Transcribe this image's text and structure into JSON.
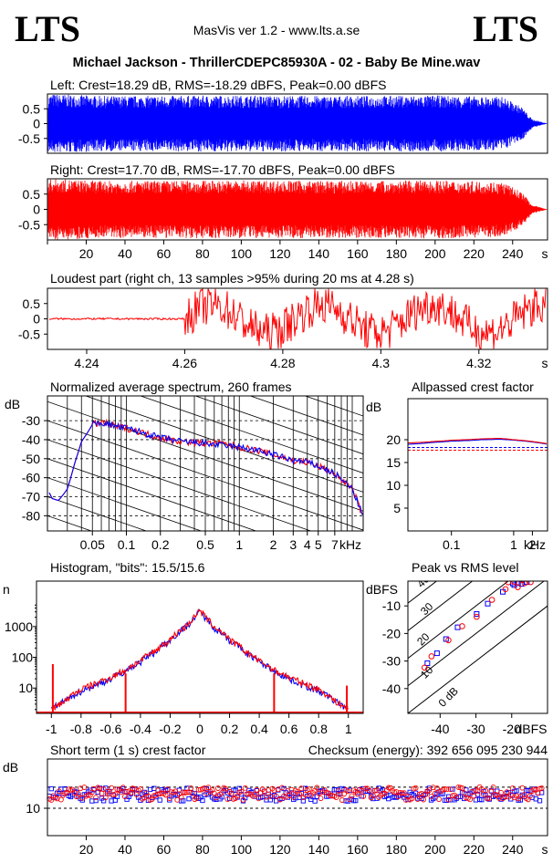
{
  "header": {
    "logo_left": "LTS",
    "logo_right": "LTS",
    "app_title": "MasVis ver 1.2 - www.lts.a.se",
    "track_title": "Michael Jackson - ThrillerCDEPC85930A - 02 - Baby Be Mine.wav"
  },
  "colors": {
    "left_channel": "#0000ff",
    "right_channel": "#ff0000",
    "axis": "#000000"
  },
  "chart_data": [
    {
      "type": "area",
      "title": "Left: Crest=18.29 dB, RMS=-18.29 dBFS, Peak=0.00 dBFS",
      "yticks": [
        "0.5",
        "0",
        "-0.5"
      ],
      "ylim": [
        -1,
        1
      ],
      "xlim": [
        0,
        258
      ],
      "series": [
        {
          "name": "Left",
          "color": "#0000ff",
          "envelope": {
            "t": [
              0,
              2,
              30,
              100,
              150,
              200,
              235,
              245,
              250,
              258
            ],
            "amp": [
              0.95,
              1.0,
              0.93,
              0.95,
              0.93,
              0.95,
              0.9,
              0.55,
              0.15,
              0
            ]
          }
        }
      ]
    },
    {
      "type": "area",
      "title": "Right: Crest=17.70 dB, RMS=-17.70 dBFS, Peak=0.00 dBFS",
      "yticks": [
        "0.5",
        "0",
        "-0.5"
      ],
      "ylim": [
        -1,
        1
      ],
      "xticks": [
        "20",
        "40",
        "60",
        "80",
        "100",
        "120",
        "140",
        "160",
        "180",
        "200",
        "220",
        "240"
      ],
      "xunit": "s",
      "xlim": [
        0,
        258
      ],
      "series": [
        {
          "name": "Right",
          "color": "#ff0000",
          "envelope": {
            "t": [
              0,
              2,
              30,
              100,
              150,
              200,
              235,
              245,
              250,
              258
            ],
            "amp": [
              0.95,
              1.0,
              0.93,
              0.95,
              0.93,
              0.95,
              0.9,
              0.55,
              0.15,
              0
            ]
          }
        }
      ]
    },
    {
      "type": "line",
      "title": "Loudest part (right ch, 13 samples >95% during 20 ms at 4.28 s)",
      "yticks": [
        "0.5",
        "0",
        "-0.5"
      ],
      "ylim": [
        -1,
        1
      ],
      "xticks": [
        "4.24",
        "4.26",
        "4.28",
        "4.3",
        "4.32"
      ],
      "xunit": "s",
      "xlim": [
        4.232,
        4.334
      ],
      "series": [
        {
          "name": "Right",
          "color": "#ff0000"
        }
      ]
    },
    {
      "type": "line",
      "title": "Normalized average spectrum, 260 frames",
      "ylabel": "dB",
      "yticks": [
        "-30",
        "-40",
        "-50",
        "-60",
        "-70",
        "-80"
      ],
      "ylim": [
        -88,
        -17
      ],
      "xticks": [
        "0.05",
        "0.1",
        "0.2",
        "0.5",
        "1",
        "2",
        "3",
        "4",
        "5",
        "7"
      ],
      "xunit": "kHz",
      "xlim": [
        0.02,
        12.5
      ],
      "x": [
        0.02,
        0.022,
        0.025,
        0.03,
        0.035,
        0.04,
        0.05,
        0.06,
        0.08,
        0.1,
        0.15,
        0.2,
        0.3,
        0.5,
        0.7,
        1,
        1.5,
        2,
        3,
        4,
        5,
        6,
        7,
        8,
        10,
        12
      ],
      "series": [
        {
          "name": "Left",
          "color": "#0000ff",
          "values": [
            -66,
            -71,
            -72,
            -66,
            -52,
            -41,
            -32,
            -31,
            -33,
            -34,
            -37,
            -39,
            -41,
            -42,
            -43,
            -44,
            -46,
            -48,
            -51,
            -52,
            -54,
            -56,
            -58,
            -61,
            -66,
            -78
          ]
        },
        {
          "name": "Right",
          "color": "#ff0000",
          "values": [
            -66,
            -71,
            -72,
            -66,
            -52,
            -41,
            -32,
            -31,
            -33,
            -34,
            -37,
            -39,
            -41,
            -42,
            -42,
            -44,
            -46,
            -48,
            -51,
            -52,
            -54,
            -56,
            -58,
            -61,
            -66,
            -78
          ]
        }
      ]
    },
    {
      "type": "line",
      "title": "Allpassed crest factor",
      "ylabel": "dB",
      "yticks": [
        "20",
        "15",
        "10",
        "5"
      ],
      "ylim": [
        0,
        29
      ],
      "xticks": [
        "0.1",
        "1",
        "2"
      ],
      "xunit": "kHz",
      "xlim": [
        0.02,
        3.5
      ],
      "x": [
        0.02,
        0.05,
        0.1,
        0.3,
        0.6,
        1,
        2,
        3.5
      ],
      "series": [
        {
          "name": "Left",
          "color": "#0000ff",
          "values": [
            19.0,
            19.4,
            19.7,
            20.0,
            20.1,
            19.9,
            19.5,
            19.0
          ],
          "reference": 18.29
        },
        {
          "name": "Right",
          "color": "#ff0000",
          "values": [
            19.3,
            19.6,
            19.9,
            20.2,
            20.3,
            20.0,
            19.6,
            19.1
          ],
          "reference": 17.7
        }
      ]
    },
    {
      "type": "line",
      "title": "Histogram, \"bits\": 15.5/15.6",
      "ylabel": "n",
      "yscale": "log",
      "yticks": [
        "1000",
        "100",
        "10"
      ],
      "ylim": [
        1.5,
        30000
      ],
      "xticks": [
        "-1",
        "-0.8",
        "-0.6",
        "-0.4",
        "-0.2",
        "0",
        "0.2",
        "0.4",
        "0.6",
        "0.8",
        "1"
      ],
      "xlim": [
        -1.1,
        1.1
      ],
      "x": [
        -1.0,
        -0.95,
        -0.9,
        -0.8,
        -0.7,
        -0.6,
        -0.5,
        -0.4,
        -0.3,
        -0.2,
        -0.1,
        -0.05,
        0,
        0.05,
        0.1,
        0.2,
        0.3,
        0.4,
        0.5,
        0.6,
        0.7,
        0.8,
        0.9,
        0.95,
        1.0
      ],
      "series": [
        {
          "name": "Left",
          "color": "#0000ff",
          "values": [
            2,
            3,
            4,
            8,
            12,
            20,
            35,
            70,
            150,
            350,
            900,
            1600,
            3000,
            1600,
            900,
            350,
            150,
            70,
            35,
            20,
            12,
            8,
            4,
            3,
            2
          ]
        },
        {
          "name": "Right",
          "color": "#ff0000",
          "values": [
            2,
            3,
            4,
            9,
            14,
            22,
            38,
            75,
            160,
            360,
            950,
            1700,
            3200,
            1700,
            950,
            360,
            160,
            75,
            38,
            22,
            14,
            9,
            4,
            3,
            2
          ]
        }
      ],
      "spikes": [
        {
          "x": -0.99,
          "value": 60
        },
        {
          "x": -0.5,
          "value": 30
        },
        {
          "x": 0.5,
          "value": 30
        },
        {
          "x": 0.99,
          "value": 12
        }
      ]
    },
    {
      "type": "scatter",
      "title": "Peak vs RMS level",
      "ylabel": "dBFS",
      "xlabel": "dBFS",
      "yticks": [
        "-10",
        "-20",
        "-30",
        "-40"
      ],
      "xticks": [
        "-40",
        "-30",
        "-20"
      ],
      "xlim": [
        -49,
        -10
      ],
      "ylim": [
        -49,
        -1
      ],
      "diagonal_labels": [
        "40",
        "30",
        "20",
        "10",
        "0 dB"
      ],
      "series": [
        {
          "name": "Left",
          "color": "#0000ff",
          "x": [
            -44,
            -41,
            -38,
            -35,
            -30,
            -27,
            -22,
            -20,
            -19,
            -18,
            -17,
            -16
          ],
          "y": [
            -31,
            -27,
            -22,
            -18,
            -13,
            -9,
            -5,
            -2,
            -3,
            -1,
            -2,
            -1
          ]
        },
        {
          "name": "Right",
          "color": "#ff0000",
          "x": [
            -44,
            -42,
            -38,
            -34,
            -30,
            -26,
            -22,
            -21,
            -19,
            -18,
            -17,
            -16,
            -15
          ],
          "y": [
            -32,
            -28,
            -23,
            -18,
            -14,
            -8,
            -4,
            -2,
            -1,
            -3,
            -1,
            -2,
            -1
          ]
        }
      ]
    },
    {
      "type": "scatter",
      "title": "Short term (1 s) crest factor",
      "annotation": "Checksum (energy):   392 656 095 230 944",
      "ylabel": "dB",
      "yticks": [
        "10"
      ],
      "ylim": [
        0,
        28
      ],
      "xticks": [
        "20",
        "40",
        "60",
        "80",
        "100",
        "120",
        "140",
        "160",
        "180",
        "200",
        "220",
        "240"
      ],
      "xunit": "s",
      "xlim": [
        0,
        258
      ],
      "reference_lines": [
        17.7,
        10
      ],
      "series": [
        {
          "name": "Left",
          "color": "#0000ff",
          "mean": 15.0,
          "spread": 1.5
        },
        {
          "name": "Right",
          "color": "#ff0000",
          "mean": 15.4,
          "spread": 1.5
        }
      ]
    }
  ]
}
